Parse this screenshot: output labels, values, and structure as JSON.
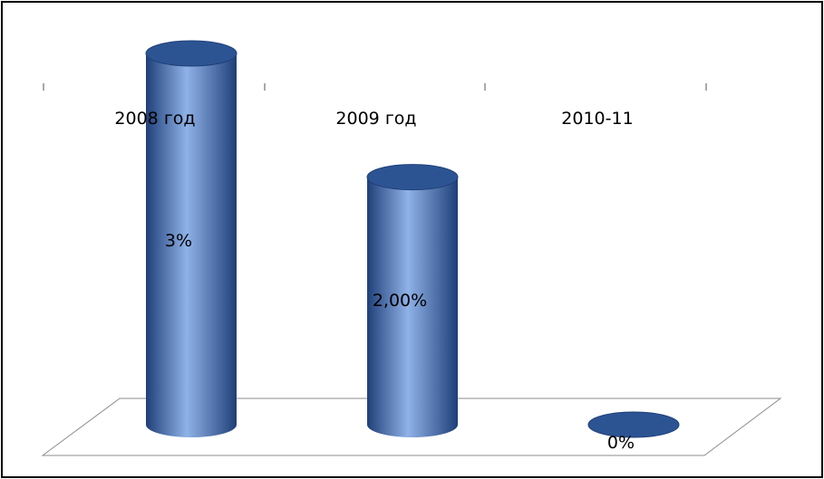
{
  "chart_data": {
    "type": "bar",
    "style": "3d-cylinder",
    "categories": [
      "2008 год",
      "2009 год",
      "2010-11"
    ],
    "values": [
      3,
      2,
      0
    ],
    "data_labels": [
      "3%",
      "2,00%",
      "0%"
    ],
    "title": "",
    "xlabel": "",
    "ylabel": "",
    "ylim": [
      0,
      3.5
    ],
    "grid": false,
    "legend": "none",
    "colors": {
      "bar": "#4a78c4",
      "bar_dark": "#1f3f78",
      "bar_light": "#8fb2e8",
      "top": "#2c5493",
      "floor": "#ffffff",
      "floor_stroke": "#8c8c8c"
    }
  }
}
